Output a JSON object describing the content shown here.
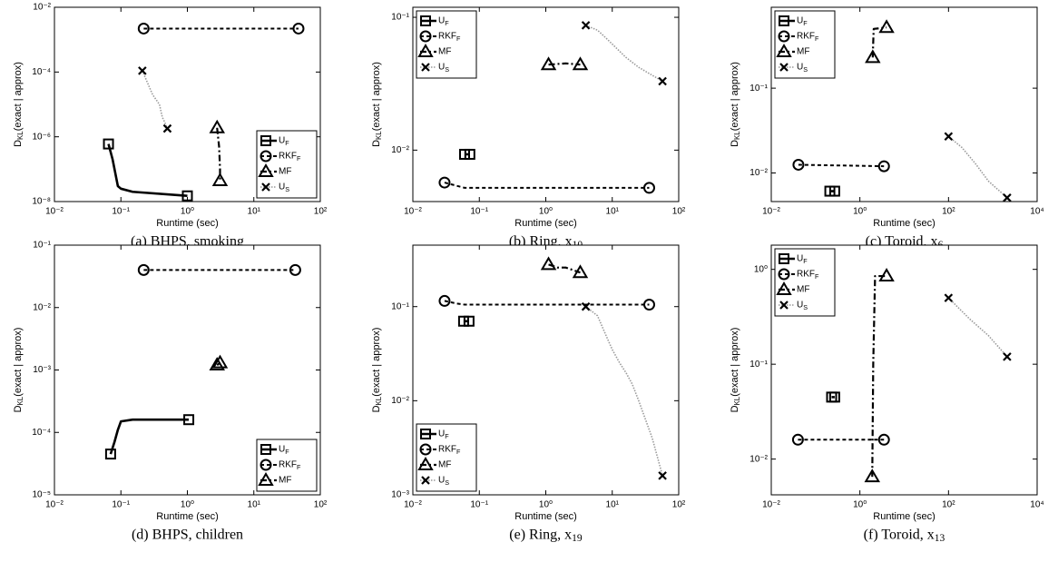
{
  "chart_data": [
    {
      "type": "line",
      "caption": "(a) BHPS, smoking",
      "xlabel": "Runtime (sec)",
      "ylabel": "D_KL(exact | approx)",
      "xscale": "log",
      "yscale": "log",
      "grid": false,
      "legend": "lower right",
      "xlim": [
        0.01,
        100
      ],
      "xticks": [
        {
          "value": 0.01,
          "label": "10⁻²"
        },
        {
          "value": 0.1,
          "label": "10⁻¹"
        },
        {
          "value": 1,
          "label": "10⁰"
        },
        {
          "value": 10,
          "label": "10¹"
        },
        {
          "value": 100,
          "label": "10²"
        }
      ],
      "ylim": [
        1e-08,
        0.01
      ],
      "yticks": [
        {
          "value": 1e-08,
          "label": "10⁻⁸"
        },
        {
          "value": 1e-06,
          "label": "10⁻⁶"
        },
        {
          "value": 0.0001,
          "label": "10⁻⁴"
        },
        {
          "value": 0.01,
          "label": "10⁻²"
        }
      ],
      "series": [
        {
          "name": "U_F",
          "color": "#000000",
          "dash": "solid",
          "marker": "square",
          "x": [
            0.065,
            0.075,
            0.09,
            0.1,
            0.15,
            1.0
          ],
          "values": [
            6e-07,
            2e-07,
            3e-08,
            2.5e-08,
            2e-08,
            1.5e-08
          ]
        },
        {
          "name": "RKF_F",
          "color": "#000000",
          "dash": "dashed",
          "marker": "circle",
          "x": [
            0.22,
            47
          ],
          "values": [
            0.0022,
            0.0022
          ]
        },
        {
          "name": "MF",
          "color": "#000000",
          "dash": "dashdot",
          "marker": "triangle",
          "x": [
            2.8,
            3.0,
            3.1,
            3.1
          ],
          "values": [
            1.9e-06,
            5e-07,
            1e-07,
            4.4e-08
          ]
        },
        {
          "name": "U_S",
          "color": "#000000",
          "line_color": "#9a9a9a",
          "dash": "dotted",
          "marker": "x",
          "x": [
            0.21,
            0.3,
            0.38,
            0.42,
            0.45,
            0.5
          ],
          "values": [
            0.00011,
            2e-05,
            1e-05,
            4e-06,
            3e-06,
            1.8e-06
          ]
        }
      ]
    },
    {
      "type": "line",
      "caption": "(b) Ring, x_10",
      "xlabel": "Runtime (sec)",
      "ylabel": "D_KL(exact | approx)",
      "xscale": "log",
      "yscale": "log",
      "grid": false,
      "legend": "upper left",
      "xlim": [
        0.01,
        100
      ],
      "xticks": [
        {
          "value": 0.01,
          "label": "10⁻²"
        },
        {
          "value": 0.1,
          "label": "10⁻¹"
        },
        {
          "value": 1,
          "label": "10⁰"
        },
        {
          "value": 10,
          "label": "10¹"
        },
        {
          "value": 100,
          "label": "10²"
        }
      ],
      "ylim": [
        0.0041,
        0.119
      ],
      "yticks": [
        {
          "value": 0.01,
          "label": "10⁻²"
        },
        {
          "value": 0.1,
          "label": "10⁻¹"
        }
      ],
      "series": [
        {
          "name": "U_F",
          "color": "#000000",
          "dash": "solid",
          "marker": "square",
          "x": [
            0.06,
            0.072
          ],
          "values": [
            0.0093,
            0.0093
          ]
        },
        {
          "name": "RKF_F",
          "color": "#000000",
          "dash": "dashed",
          "marker": "circle",
          "x": [
            0.03,
            0.045,
            0.06,
            36
          ],
          "values": [
            0.0057,
            0.0054,
            0.0052,
            0.0052
          ]
        },
        {
          "name": "MF",
          "color": "#000000",
          "dash": "dashdot",
          "marker": "triangle",
          "x": [
            1.1,
            2.0,
            3.3
          ],
          "values": [
            0.044,
            0.045,
            0.044
          ]
        },
        {
          "name": "U_S",
          "color": "#000000",
          "line_color": "#9a9a9a",
          "dash": "dotted",
          "marker": "x",
          "x": [
            4.0,
            6,
            8,
            11,
            16,
            25,
            57
          ],
          "values": [
            0.087,
            0.08,
            0.07,
            0.06,
            0.05,
            0.042,
            0.033
          ]
        }
      ]
    },
    {
      "type": "line",
      "caption": "(c) Toroid, x_6",
      "xlabel": "Runtime (sec)",
      "ylabel": "D_KL(exact | approx)",
      "xscale": "log",
      "yscale": "log",
      "grid": false,
      "legend": "upper left",
      "xlim": [
        0.01,
        10000
      ],
      "xticks": [
        {
          "value": 0.01,
          "label": "10⁻²"
        },
        {
          "value": 1,
          "label": "10⁰"
        },
        {
          "value": 100,
          "label": "10²"
        },
        {
          "value": 10000,
          "label": "10⁴"
        }
      ],
      "ylim": [
        0.0046,
        0.9
      ],
      "yticks": [
        {
          "value": 0.01,
          "label": "10⁻²"
        },
        {
          "value": 0.1,
          "label": "10⁻¹"
        }
      ],
      "series": [
        {
          "name": "U_F",
          "color": "#000000",
          "dash": "solid",
          "marker": "square",
          "x": [
            0.21,
            0.27
          ],
          "values": [
            0.0061,
            0.0061
          ]
        },
        {
          "name": "RKF_F",
          "color": "#000000",
          "dash": "dashed",
          "marker": "circle",
          "x": [
            0.041,
            3.5
          ],
          "values": [
            0.0125,
            0.012
          ]
        },
        {
          "name": "MF",
          "color": "#000000",
          "dash": "dashdot",
          "marker": "triangle",
          "x": [
            1.95,
            2.0,
            2.05,
            4.0
          ],
          "values": [
            0.23,
            0.35,
            0.5,
            0.52
          ]
        },
        {
          "name": "U_S",
          "color": "#000000",
          "line_color": "#9a9a9a",
          "dash": "dotted",
          "marker": "x",
          "x": [
            100,
            200,
            400,
            800,
            2100
          ],
          "values": [
            0.027,
            0.02,
            0.013,
            0.008,
            0.0051
          ]
        }
      ]
    },
    {
      "type": "line",
      "caption": "(d) BHPS, children",
      "xlabel": "Runtime (sec)",
      "ylabel": "D_KL(exact | approx)",
      "xscale": "log",
      "yscale": "log",
      "grid": false,
      "legend": "lower right",
      "xlim": [
        0.01,
        100
      ],
      "xticks": [
        {
          "value": 0.01,
          "label": "10⁻²"
        },
        {
          "value": 0.1,
          "label": "10⁻¹"
        },
        {
          "value": 1,
          "label": "10⁰"
        },
        {
          "value": 10,
          "label": "10¹"
        },
        {
          "value": 100,
          "label": "10²"
        }
      ],
      "ylim": [
        1e-05,
        0.1
      ],
      "yticks": [
        {
          "value": 1e-05,
          "label": "10⁻⁵"
        },
        {
          "value": 0.0001,
          "label": "10⁻⁴"
        },
        {
          "value": 0.001,
          "label": "10⁻³"
        },
        {
          "value": 0.01,
          "label": "10⁻²"
        },
        {
          "value": 0.1,
          "label": "10⁻¹"
        }
      ],
      "series": [
        {
          "name": "U_F",
          "color": "#000000",
          "dash": "solid",
          "marker": "square",
          "x": [
            0.07,
            0.08,
            0.09,
            0.1,
            0.15,
            1.05
          ],
          "values": [
            4.5e-05,
            7e-05,
            0.00011,
            0.00015,
            0.00016,
            0.00016
          ]
        },
        {
          "name": "RKF_F",
          "color": "#000000",
          "dash": "dashed",
          "marker": "circle",
          "x": [
            0.22,
            42
          ],
          "values": [
            0.04,
            0.04
          ]
        },
        {
          "name": "MF",
          "color": "#000000",
          "dash": "dashdot",
          "marker": "triangle",
          "x": [
            2.8,
            3.1
          ],
          "values": [
            0.0012,
            0.0013
          ]
        }
      ]
    },
    {
      "type": "line",
      "caption": "(e) Ring, x_19",
      "xlabel": "Runtime (sec)",
      "ylabel": "D_KL(exact | approx)",
      "xscale": "log",
      "yscale": "log",
      "grid": false,
      "legend": "lower left",
      "xlim": [
        0.01,
        100
      ],
      "xticks": [
        {
          "value": 0.01,
          "label": "10⁻²"
        },
        {
          "value": 0.1,
          "label": "10⁻¹"
        },
        {
          "value": 1,
          "label": "10⁰"
        },
        {
          "value": 10,
          "label": "10¹"
        },
        {
          "value": 100,
          "label": "10²"
        }
      ],
      "ylim": [
        0.001,
        0.45
      ],
      "yticks": [
        {
          "value": 0.001,
          "label": "10⁻³"
        },
        {
          "value": 0.01,
          "label": "10⁻²"
        },
        {
          "value": 0.1,
          "label": "10⁻¹"
        }
      ],
      "series": [
        {
          "name": "U_F",
          "color": "#000000",
          "dash": "solid",
          "marker": "square",
          "x": [
            0.058,
            0.07
          ],
          "values": [
            0.07,
            0.07
          ]
        },
        {
          "name": "RKF_F",
          "color": "#000000",
          "dash": "dashed",
          "marker": "circle",
          "x": [
            0.03,
            0.045,
            0.06,
            36
          ],
          "values": [
            0.115,
            0.108,
            0.105,
            0.105
          ]
        },
        {
          "name": "MF",
          "color": "#000000",
          "dash": "dashdot",
          "marker": "triangle",
          "x": [
            1.1,
            1.5,
            2.0,
            3.3
          ],
          "values": [
            0.28,
            0.26,
            0.26,
            0.23
          ]
        },
        {
          "name": "U_S",
          "color": "#000000",
          "line_color": "#9a9a9a",
          "dash": "dotted",
          "marker": "x",
          "x": [
            4,
            6,
            8,
            10,
            13,
            16,
            20,
            25,
            30,
            40,
            57
          ],
          "values": [
            0.1,
            0.08,
            0.05,
            0.035,
            0.025,
            0.02,
            0.015,
            0.01,
            0.007,
            0.004,
            0.0016
          ]
        }
      ]
    },
    {
      "type": "line",
      "caption": "(f) Toroid, x_13",
      "xlabel": "Runtime (sec)",
      "ylabel": "D_KL(exact | approx)",
      "xscale": "log",
      "yscale": "log",
      "grid": false,
      "legend": "upper left",
      "xlim": [
        0.01,
        10000
      ],
      "xticks": [
        {
          "value": 0.01,
          "label": "10⁻²"
        },
        {
          "value": 1,
          "label": "10⁰"
        },
        {
          "value": 100,
          "label": "10²"
        },
        {
          "value": 10000,
          "label": "10⁴"
        }
      ],
      "ylim": [
        0.0042,
        1.8
      ],
      "yticks": [
        {
          "value": 0.01,
          "label": "10⁻²"
        },
        {
          "value": 0.1,
          "label": "10⁻¹"
        },
        {
          "value": 1,
          "label": "10⁰"
        }
      ],
      "series": [
        {
          "name": "U_F",
          "color": "#000000",
          "dash": "solid",
          "marker": "square",
          "x": [
            0.23,
            0.27
          ],
          "values": [
            0.045,
            0.045
          ]
        },
        {
          "name": "RKF_F",
          "color": "#000000",
          "dash": "dashed",
          "marker": "circle",
          "x": [
            0.04,
            3.5
          ],
          "values": [
            0.016,
            0.016
          ]
        },
        {
          "name": "MF",
          "color": "#000000",
          "dash": "dashdot",
          "marker": "triangle",
          "x": [
            1.9,
            2.0,
            2.2,
            4.0
          ],
          "values": [
            0.0065,
            0.1,
            0.85,
            0.85
          ]
        },
        {
          "name": "U_S",
          "color": "#000000",
          "line_color": "#9a9a9a",
          "dash": "dotted",
          "marker": "x",
          "x": [
            100,
            300,
            800,
            2100
          ],
          "values": [
            0.5,
            0.3,
            0.2,
            0.12
          ]
        }
      ]
    }
  ]
}
